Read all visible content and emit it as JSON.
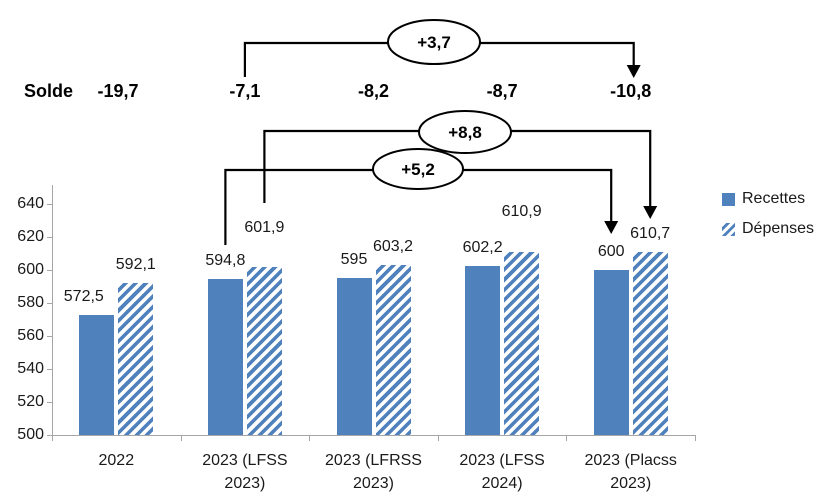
{
  "colors": {
    "accent": "#4f81bd",
    "axis": "#a6a6a6",
    "text": "#1a1a1a",
    "annotation": "#000000"
  },
  "solde": {
    "label": "Solde",
    "values": [
      "-19,7",
      "-7,1",
      "-8,2",
      "-8,7",
      "-10,8"
    ]
  },
  "deltas": [
    {
      "label": "+3,7",
      "series": "Solde",
      "from": "2023 (LFSS 2023)",
      "to": "2023 (Placss 2023)"
    },
    {
      "label": "+8,8",
      "series": "Dépenses",
      "from": "2023 (LFSS 2023)",
      "to": "2023 (Placss 2023)"
    },
    {
      "label": "+5,2",
      "series": "Recettes",
      "from": "2023 (LFSS 2023)",
      "to": "2023 (Placss 2023)"
    }
  ],
  "chart_data": {
    "type": "bar",
    "title": "",
    "xlabel": "",
    "ylabel": "",
    "categories": [
      "2022",
      "2023 (LFSS 2023)",
      "2023 (LFRSS 2023)",
      "2023 (LFSS 2024)",
      "2023 (Placss 2023)"
    ],
    "category_label_lines": [
      [
        "2022"
      ],
      [
        "2023 (LFSS",
        "2023)"
      ],
      [
        "2023 (LFRSS",
        "2023)"
      ],
      [
        "2023 (LFSS",
        "2024)"
      ],
      [
        "2023 (Placss",
        "2023)"
      ]
    ],
    "series": [
      {
        "name": "Recettes",
        "style": "solid",
        "values": [
          572.5,
          594.8,
          595,
          602.2,
          600
        ],
        "labels": [
          "572,5",
          "594,8",
          "595",
          "602,2",
          "600"
        ]
      },
      {
        "name": "Dépenses",
        "style": "hatched",
        "values": [
          592.1,
          601.9,
          603.2,
          610.9,
          610.7
        ],
        "labels": [
          "592,1",
          "601,9",
          "603,2",
          "610,9",
          "610,7"
        ]
      }
    ],
    "ylim": [
      500,
      640
    ],
    "ytick_step": 20,
    "ytick_labels": [
      "500",
      "520",
      "540",
      "560",
      "580",
      "600",
      "620",
      "640"
    ],
    "grid": false,
    "legend_position": "right",
    "legend": [
      "Recettes",
      "Dépenses"
    ],
    "solde_row": {
      "label": "Solde",
      "values": [
        "-19,7",
        "-7,1",
        "-8,2",
        "-8,7",
        "-10,8"
      ]
    },
    "annotations": [
      {
        "label": "+3,7",
        "series": "Solde",
        "from_category": "2023 (LFSS 2023)",
        "to_category": "2023 (Placss 2023)"
      },
      {
        "label": "+8,8",
        "series": "Dépenses",
        "from_category": "2023 (LFSS 2023)",
        "to_category": "2023 (Placss 2023)"
      },
      {
        "label": "+5,2",
        "series": "Recettes",
        "from_category": "2023 (LFSS 2023)",
        "to_category": "2023 (Placss 2023)"
      }
    ]
  }
}
